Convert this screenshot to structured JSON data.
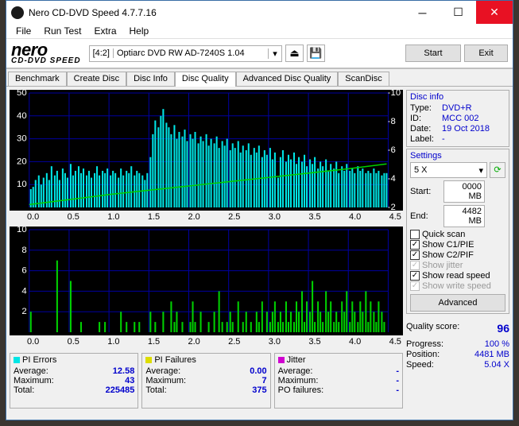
{
  "window": {
    "title": "Nero CD-DVD Speed 4.7.7.16"
  },
  "menu": {
    "file": "File",
    "run": "Run Test",
    "extra": "Extra",
    "help": "Help"
  },
  "logo": {
    "brand": "nero",
    "sub": "CD-DVD SPEED"
  },
  "drive": {
    "index": "[4:2]",
    "name": "Optiarc DVD RW AD-7240S 1.04"
  },
  "buttons": {
    "start": "Start",
    "exit": "Exit"
  },
  "tabs": {
    "benchmark": "Benchmark",
    "create": "Create Disc",
    "info": "Disc Info",
    "quality": "Disc Quality",
    "advquality": "Advanced Disc Quality",
    "scandisc": "ScanDisc"
  },
  "chart1": {
    "type": "area",
    "xlim": [
      0,
      4.5
    ],
    "xtick_step": 0.5,
    "ylim_left": [
      0,
      50
    ],
    "ytick_left": [
      10,
      20,
      30,
      40,
      50
    ],
    "ylim_right": [
      2,
      10
    ],
    "ytick_right": [
      2,
      4,
      6,
      8,
      10
    ],
    "bg": "#000000",
    "grid": "#0000a0",
    "area_color": "#00e5e5",
    "speed_line_color": "#00d000",
    "x_ticks": [
      "0.0",
      "0.5",
      "1.0",
      "1.5",
      "2.0",
      "2.5",
      "3.0",
      "3.5",
      "4.0",
      "4.5"
    ],
    "pie_bars": [
      [
        0.02,
        8
      ],
      [
        0.05,
        9
      ],
      [
        0.08,
        12
      ],
      [
        0.12,
        14
      ],
      [
        0.15,
        10
      ],
      [
        0.18,
        13
      ],
      [
        0.22,
        15
      ],
      [
        0.25,
        12
      ],
      [
        0.28,
        18
      ],
      [
        0.32,
        14
      ],
      [
        0.35,
        16
      ],
      [
        0.38,
        12
      ],
      [
        0.42,
        17
      ],
      [
        0.45,
        15
      ],
      [
        0.48,
        13
      ],
      [
        0.52,
        19
      ],
      [
        0.55,
        14
      ],
      [
        0.58,
        16
      ],
      [
        0.62,
        18
      ],
      [
        0.65,
        15
      ],
      [
        0.68,
        17
      ],
      [
        0.72,
        14
      ],
      [
        0.75,
        16
      ],
      [
        0.78,
        13
      ],
      [
        0.82,
        15
      ],
      [
        0.85,
        18
      ],
      [
        0.88,
        14
      ],
      [
        0.92,
        16
      ],
      [
        0.95,
        15
      ],
      [
        0.98,
        17
      ],
      [
        1.02,
        14
      ],
      [
        1.05,
        16
      ],
      [
        1.08,
        15
      ],
      [
        1.12,
        13
      ],
      [
        1.15,
        17
      ],
      [
        1.18,
        14
      ],
      [
        1.22,
        16
      ],
      [
        1.25,
        15
      ],
      [
        1.28,
        18
      ],
      [
        1.32,
        14
      ],
      [
        1.35,
        16
      ],
      [
        1.38,
        15
      ],
      [
        1.42,
        14
      ],
      [
        1.45,
        12
      ],
      [
        1.48,
        15
      ],
      [
        1.52,
        22
      ],
      [
        1.55,
        32
      ],
      [
        1.58,
        38
      ],
      [
        1.62,
        35
      ],
      [
        1.65,
        40
      ],
      [
        1.68,
        43
      ],
      [
        1.72,
        37
      ],
      [
        1.75,
        35
      ],
      [
        1.78,
        32
      ],
      [
        1.82,
        36
      ],
      [
        1.85,
        30
      ],
      [
        1.88,
        33
      ],
      [
        1.92,
        31
      ],
      [
        1.95,
        34
      ],
      [
        1.98,
        29
      ],
      [
        2.02,
        32
      ],
      [
        2.05,
        30
      ],
      [
        2.08,
        33
      ],
      [
        2.12,
        28
      ],
      [
        2.15,
        31
      ],
      [
        2.18,
        29
      ],
      [
        2.22,
        32
      ],
      [
        2.25,
        27
      ],
      [
        2.28,
        30
      ],
      [
        2.32,
        28
      ],
      [
        2.35,
        31
      ],
      [
        2.38,
        26
      ],
      [
        2.42,
        29
      ],
      [
        2.45,
        27
      ],
      [
        2.48,
        30
      ],
      [
        2.52,
        25
      ],
      [
        2.55,
        28
      ],
      [
        2.58,
        26
      ],
      [
        2.62,
        29
      ],
      [
        2.65,
        24
      ],
      [
        2.68,
        27
      ],
      [
        2.72,
        25
      ],
      [
        2.75,
        28
      ],
      [
        2.78,
        23
      ],
      [
        2.82,
        26
      ],
      [
        2.85,
        24
      ],
      [
        2.88,
        27
      ],
      [
        2.92,
        22
      ],
      [
        2.95,
        25
      ],
      [
        2.98,
        23
      ],
      [
        3.02,
        26
      ],
      [
        3.05,
        21
      ],
      [
        3.08,
        24
      ],
      [
        3.12,
        13
      ],
      [
        3.15,
        22
      ],
      [
        3.18,
        25
      ],
      [
        3.22,
        20
      ],
      [
        3.25,
        23
      ],
      [
        3.28,
        21
      ],
      [
        3.32,
        24
      ],
      [
        3.35,
        19
      ],
      [
        3.38,
        22
      ],
      [
        3.42,
        20
      ],
      [
        3.45,
        23
      ],
      [
        3.48,
        18
      ],
      [
        3.52,
        21
      ],
      [
        3.55,
        19
      ],
      [
        3.58,
        22
      ],
      [
        3.62,
        17
      ],
      [
        3.65,
        20
      ],
      [
        3.68,
        18
      ],
      [
        3.72,
        21
      ],
      [
        3.75,
        16
      ],
      [
        3.78,
        19
      ],
      [
        3.82,
        17
      ],
      [
        3.85,
        20
      ],
      [
        3.88,
        15
      ],
      [
        3.92,
        18
      ],
      [
        3.95,
        16
      ],
      [
        3.98,
        19
      ],
      [
        4.02,
        16
      ],
      [
        4.05,
        17
      ],
      [
        4.08,
        15
      ],
      [
        4.12,
        18
      ],
      [
        4.15,
        16
      ],
      [
        4.18,
        17
      ],
      [
        4.22,
        15
      ],
      [
        4.25,
        16
      ],
      [
        4.28,
        15
      ],
      [
        4.32,
        17
      ],
      [
        4.35,
        15
      ],
      [
        4.38,
        16
      ],
      [
        4.42,
        14
      ],
      [
        4.45,
        15
      ],
      [
        4.48,
        15
      ]
    ],
    "speed_line": [
      [
        0,
        2.2
      ],
      [
        1,
        2.9
      ],
      [
        2,
        3.5
      ],
      [
        3,
        4.1
      ],
      [
        4,
        4.7
      ],
      [
        4.48,
        5.04
      ]
    ]
  },
  "chart2": {
    "type": "bar",
    "xlim": [
      0,
      4.5
    ],
    "xtick_step": 0.5,
    "ylim": [
      0,
      10
    ],
    "ytick": [
      2,
      4,
      6,
      8,
      10
    ],
    "bg": "#000000",
    "grid": "#0000a0",
    "bar_color": "#00d000",
    "x_ticks": [
      "0.0",
      "0.5",
      "1.0",
      "1.5",
      "2.0",
      "2.5",
      "3.0",
      "3.5",
      "4.0",
      "4.5"
    ],
    "pif_bars": [
      [
        0.02,
        2
      ],
      [
        0.35,
        7
      ],
      [
        0.52,
        5
      ],
      [
        0.65,
        1
      ],
      [
        0.88,
        1
      ],
      [
        0.95,
        1
      ],
      [
        1.15,
        2
      ],
      [
        1.22,
        1
      ],
      [
        1.32,
        1
      ],
      [
        1.38,
        1
      ],
      [
        1.52,
        2
      ],
      [
        1.58,
        1
      ],
      [
        1.68,
        2
      ],
      [
        1.78,
        3
      ],
      [
        1.82,
        1
      ],
      [
        1.85,
        2
      ],
      [
        1.92,
        1
      ],
      [
        2.02,
        1
      ],
      [
        2.05,
        3
      ],
      [
        2.08,
        1
      ],
      [
        2.15,
        2
      ],
      [
        2.25,
        1
      ],
      [
        2.32,
        2
      ],
      [
        2.38,
        4
      ],
      [
        2.42,
        1
      ],
      [
        2.48,
        1
      ],
      [
        2.52,
        2
      ],
      [
        2.55,
        1
      ],
      [
        2.62,
        3
      ],
      [
        2.68,
        1
      ],
      [
        2.72,
        2
      ],
      [
        2.78,
        1
      ],
      [
        2.85,
        2
      ],
      [
        2.88,
        1
      ],
      [
        2.92,
        3
      ],
      [
        2.98,
        2
      ],
      [
        3.02,
        1
      ],
      [
        3.05,
        2
      ],
      [
        3.08,
        3
      ],
      [
        3.12,
        1
      ],
      [
        3.15,
        2
      ],
      [
        3.18,
        1
      ],
      [
        3.22,
        3
      ],
      [
        3.25,
        1
      ],
      [
        3.28,
        2
      ],
      [
        3.32,
        1
      ],
      [
        3.35,
        3
      ],
      [
        3.38,
        2
      ],
      [
        3.42,
        4
      ],
      [
        3.45,
        1
      ],
      [
        3.48,
        3
      ],
      [
        3.52,
        2
      ],
      [
        3.55,
        5
      ],
      [
        3.58,
        1
      ],
      [
        3.62,
        3
      ],
      [
        3.65,
        2
      ],
      [
        3.68,
        1
      ],
      [
        3.72,
        4
      ],
      [
        3.75,
        2
      ],
      [
        3.78,
        3
      ],
      [
        3.82,
        1
      ],
      [
        3.85,
        2
      ],
      [
        3.88,
        1
      ],
      [
        3.92,
        3
      ],
      [
        3.95,
        2
      ],
      [
        3.98,
        4
      ],
      [
        4.02,
        1
      ],
      [
        4.05,
        3
      ],
      [
        4.08,
        2
      ],
      [
        4.12,
        1
      ],
      [
        4.15,
        3
      ],
      [
        4.18,
        2
      ],
      [
        4.22,
        4
      ],
      [
        4.25,
        1
      ],
      [
        4.28,
        3
      ],
      [
        4.32,
        2
      ],
      [
        4.35,
        1
      ],
      [
        4.38,
        3
      ],
      [
        4.42,
        2
      ],
      [
        4.45,
        1
      ]
    ]
  },
  "stats": {
    "pie": {
      "title": "PI Errors",
      "color": "#00e5e5",
      "avg_lbl": "Average:",
      "avg": "12.58",
      "max_lbl": "Maximum:",
      "max": "43",
      "tot_lbl": "Total:",
      "tot": "225485"
    },
    "pif": {
      "title": "PI Failures",
      "color": "#dddd00",
      "avg_lbl": "Average:",
      "avg": "0.00",
      "max_lbl": "Maximum:",
      "max": "7",
      "tot_lbl": "Total:",
      "tot": "375"
    },
    "jitter": {
      "title": "Jitter",
      "color": "#d000d0",
      "avg_lbl": "Average:",
      "avg": "-",
      "max_lbl": "Maximum:",
      "max": "-",
      "po_lbl": "PO failures:",
      "po": "-"
    }
  },
  "discinfo": {
    "title": "Disc info",
    "type_lbl": "Type:",
    "type": "DVD+R",
    "id_lbl": "ID:",
    "id": "MCC 002",
    "date_lbl": "Date:",
    "date": "19 Oct 2018",
    "label_lbl": "Label:",
    "label": "-"
  },
  "settings": {
    "title": "Settings",
    "speed": "5 X",
    "start_lbl": "Start:",
    "start": "0000 MB",
    "end_lbl": "End:",
    "end": "4482 MB",
    "quick": "Quick scan",
    "c1": "Show C1/PIE",
    "c2": "Show C2/PIF",
    "jitter": "Show jitter",
    "readspeed": "Show read speed",
    "writespeed": "Show write speed",
    "advanced": "Advanced"
  },
  "quality": {
    "label": "Quality score:",
    "value": "96"
  },
  "progress": {
    "prog_lbl": "Progress:",
    "prog": "100 %",
    "pos_lbl": "Position:",
    "pos": "4481 MB",
    "spd_lbl": "Speed:",
    "spd": "5.04 X"
  }
}
